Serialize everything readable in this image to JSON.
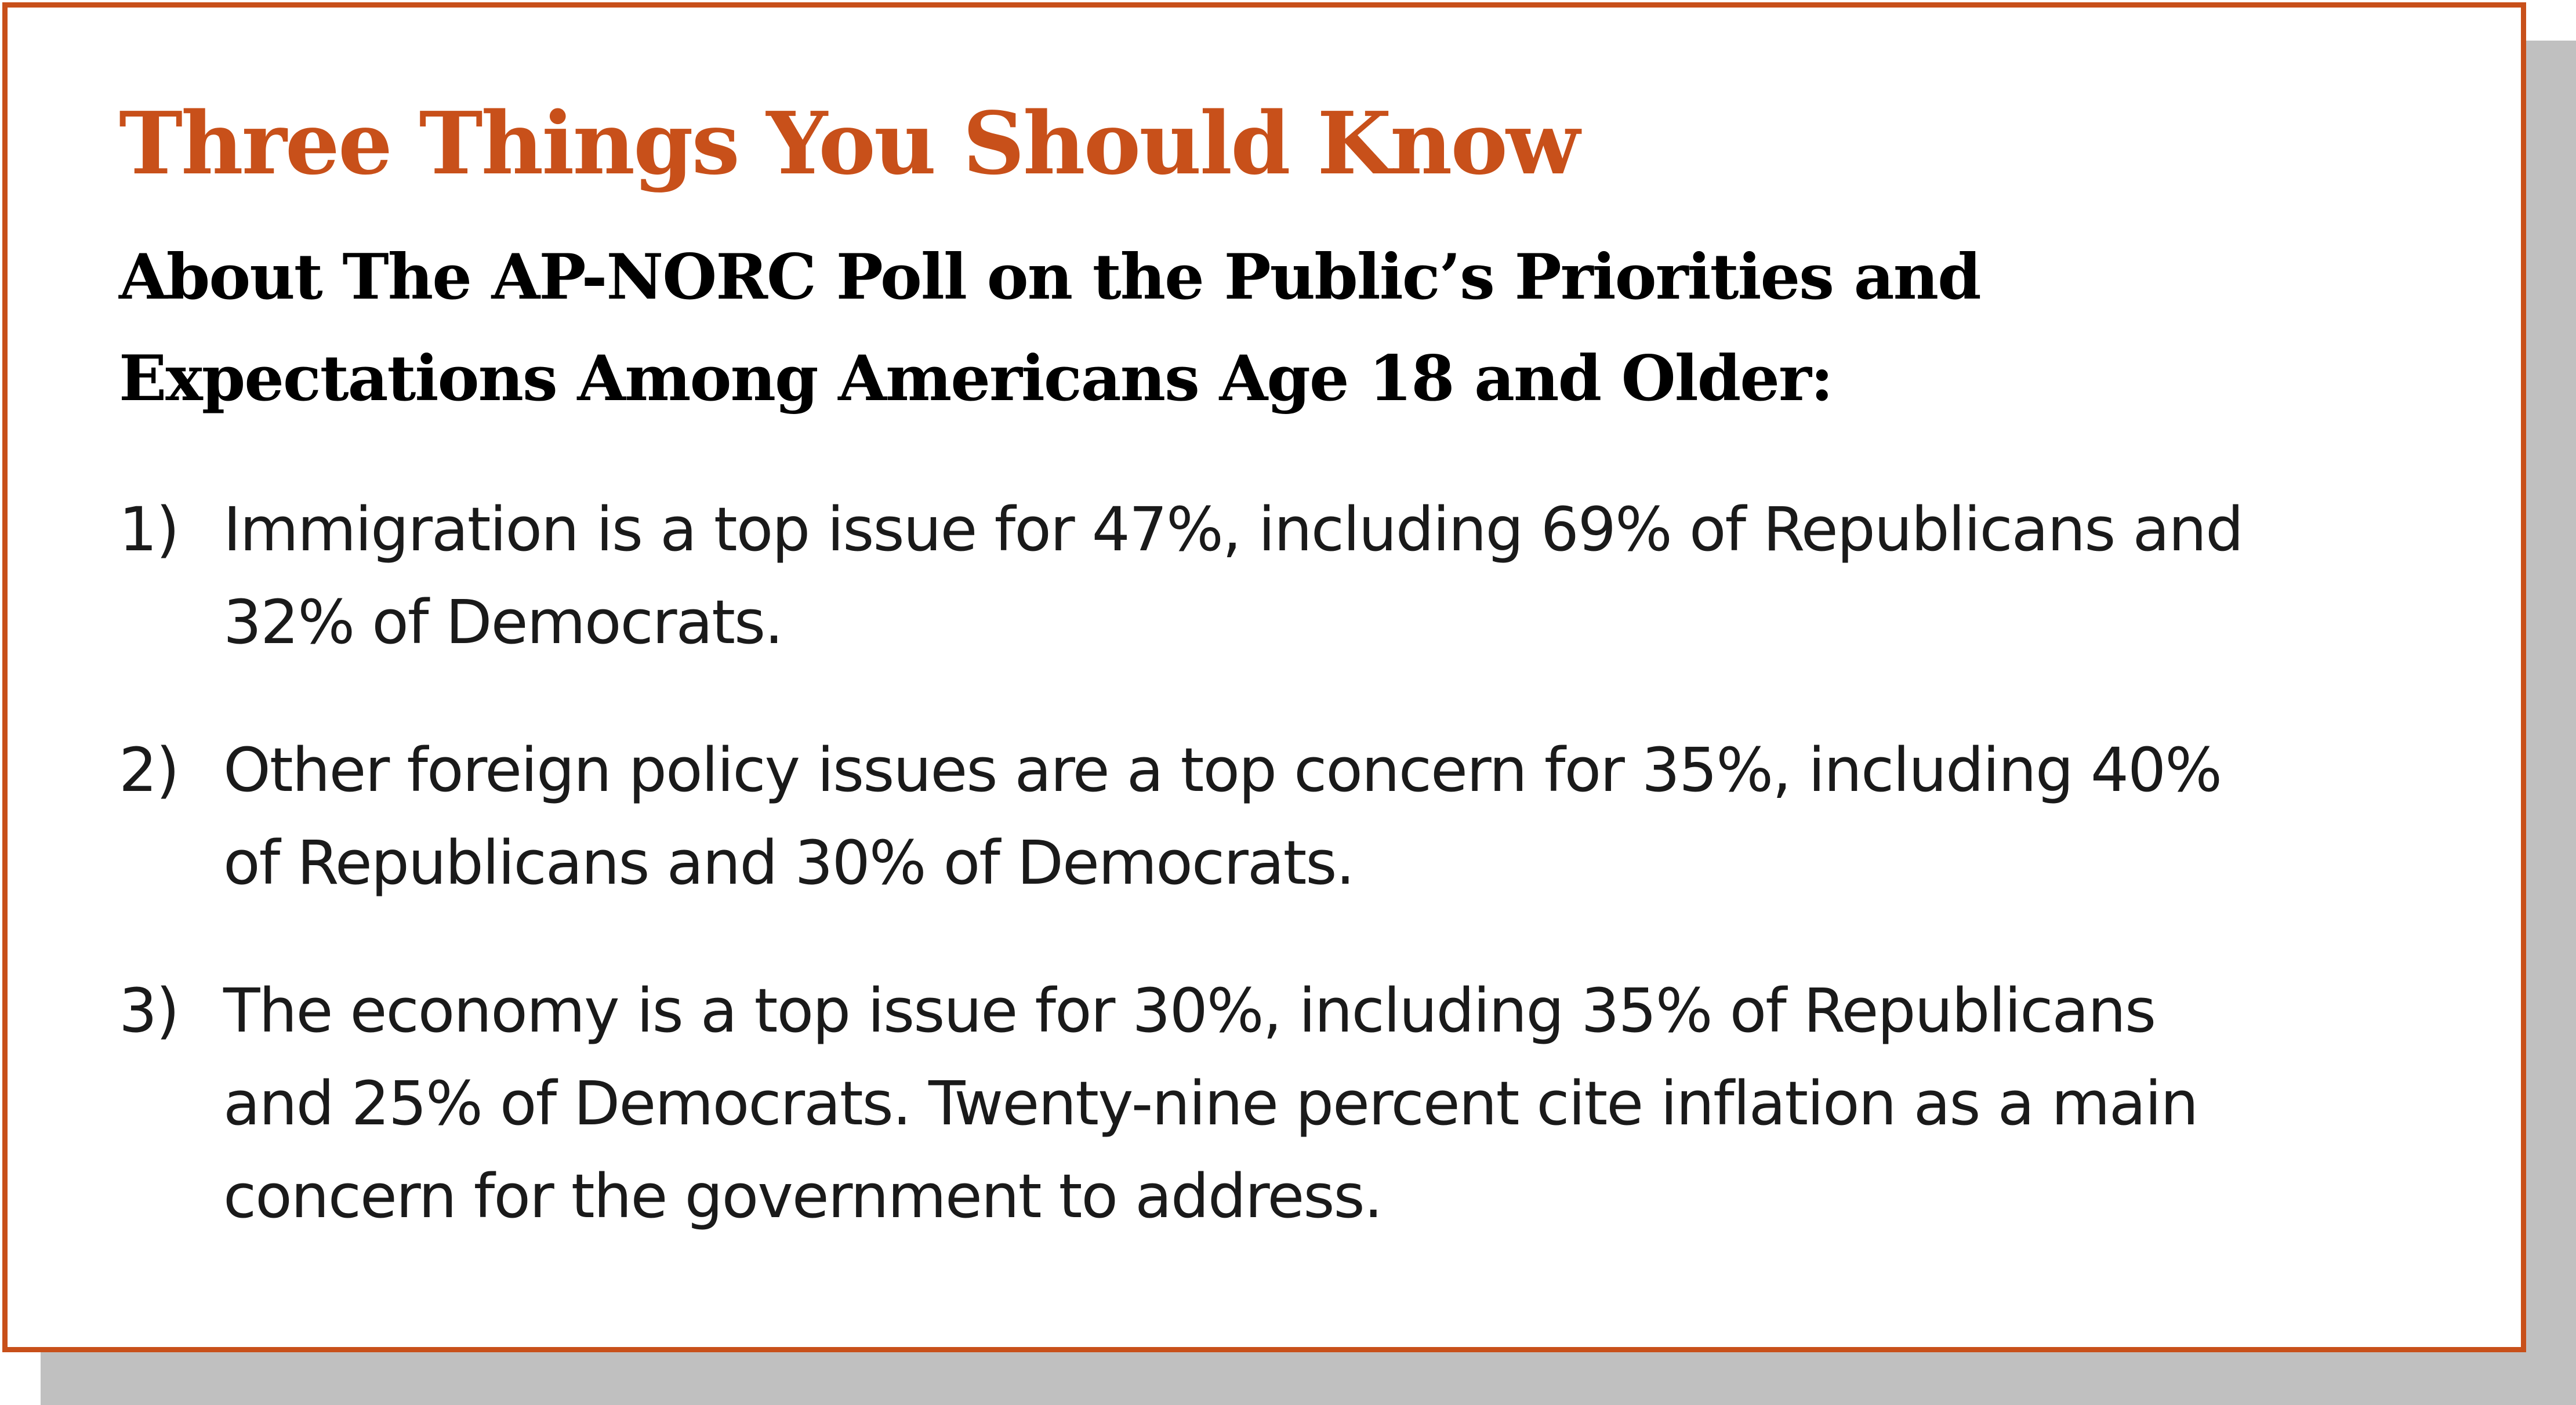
{
  "card": {
    "title": "Three Things You Should Know",
    "subtitle_lines": [
      "About The AP-NORC Poll on the Public’s Priorities and",
      "Expectations Among Americans Age 18 and Older:"
    ],
    "items": [
      {
        "number": "1)",
        "lines": [
          "Immigration is a top issue for 47%, including 69% of Republicans and",
          "32% of Democrats."
        ]
      },
      {
        "number": "2)",
        "lines": [
          "Other foreign policy issues are a top concern for 35%, including 40%",
          "of Republicans and 30% of Democrats."
        ]
      },
      {
        "number": "3)",
        "lines": [
          "The economy is a top issue for 30%, including 35% of Republicans",
          "and 25% of Democrats. Twenty-nine percent cite inflation as a main",
          "concern for the government to address."
        ]
      }
    ]
  },
  "colors": {
    "accent": "#c8501a",
    "shadow": "#c0c0c0",
    "text": "#000000"
  }
}
